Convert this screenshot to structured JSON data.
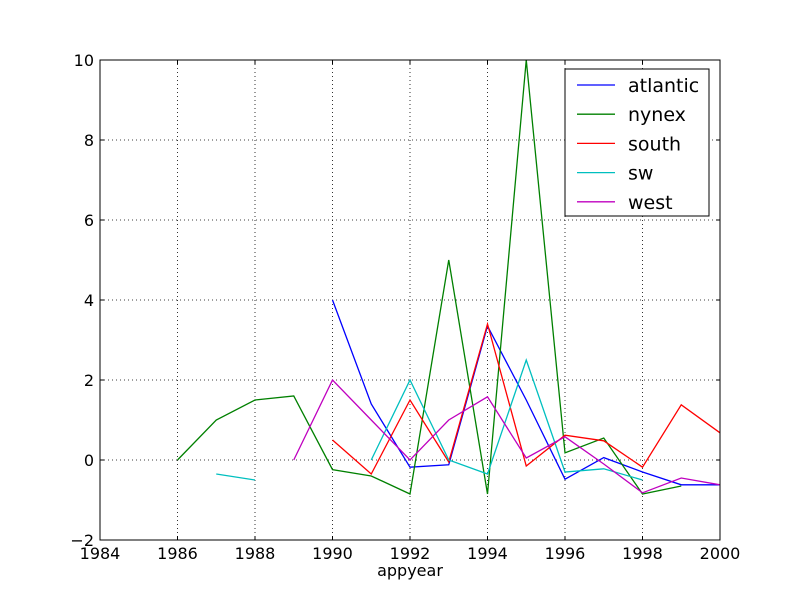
{
  "chart_data": {
    "type": "line",
    "title": "",
    "xlabel": "appyear",
    "ylabel": "",
    "xlim": [
      1984,
      2000
    ],
    "ylim": [
      -2,
      10
    ],
    "x_ticks": [
      1984,
      1986,
      1988,
      1990,
      1992,
      1994,
      1996,
      1998,
      2000
    ],
    "y_ticks": [
      -2,
      0,
      2,
      4,
      6,
      8,
      10
    ],
    "x_tick_labels": [
      "1984",
      "1986",
      "1988",
      "1990",
      "1992",
      "1994",
      "1996",
      "1998",
      "2000"
    ],
    "y_tick_labels": [
      "−2",
      "0",
      "2",
      "4",
      "6",
      "8",
      "10"
    ],
    "grid": true,
    "legend_position": "top-right",
    "series": [
      {
        "name": "atlantic",
        "color": "#0000ff",
        "x": [
          1990,
          1991,
          1992,
          1993,
          1994,
          1995,
          1996,
          1997,
          1998,
          1999,
          2000
        ],
        "y": [
          4.0,
          1.4,
          -0.18,
          -0.12,
          3.35,
          1.5,
          -0.48,
          0.06,
          -0.3,
          -0.62,
          -0.62
        ]
      },
      {
        "name": "nynex",
        "color": "#008000",
        "x": [
          1986,
          1987,
          1988,
          1989,
          1990,
          1991,
          1992,
          1993,
          1994,
          1995,
          1996,
          1997,
          1998,
          1999
        ],
        "y": [
          0.0,
          1.0,
          1.5,
          1.6,
          -0.24,
          -0.4,
          -0.85,
          5.0,
          -0.85,
          10.0,
          0.18,
          0.55,
          -0.85,
          -0.65
        ]
      },
      {
        "name": "south",
        "color": "#ff0000",
        "x": [
          1990,
          1991,
          1992,
          1993,
          1994,
          1995,
          1996,
          1997,
          1998,
          1999,
          2000
        ],
        "y": [
          0.5,
          -0.35,
          1.5,
          -0.05,
          3.4,
          -0.15,
          0.62,
          0.48,
          -0.18,
          1.38,
          0.68
        ]
      },
      {
        "name": "sw",
        "color": "#00bfbf",
        "segments": [
          {
            "x": [
              1987,
              1988
            ],
            "y": [
              -0.35,
              -0.5
            ]
          },
          {
            "x": [
              1991,
              1992,
              1993,
              1994,
              1995,
              1996,
              1997,
              1998
            ],
            "y": [
              0.0,
              2.0,
              0.0,
              -0.35,
              2.5,
              -0.3,
              -0.22,
              -0.5
            ]
          }
        ]
      },
      {
        "name": "west",
        "color": "#bf00bf",
        "x": [
          1989,
          1990,
          1991,
          1992,
          1993,
          1994,
          1995,
          1996,
          1997,
          1998,
          1999,
          2000
        ],
        "y": [
          0.0,
          2.0,
          1.0,
          0.0,
          1.0,
          1.58,
          0.05,
          0.58,
          -0.1,
          -0.82,
          -0.45,
          -0.62
        ]
      }
    ]
  }
}
